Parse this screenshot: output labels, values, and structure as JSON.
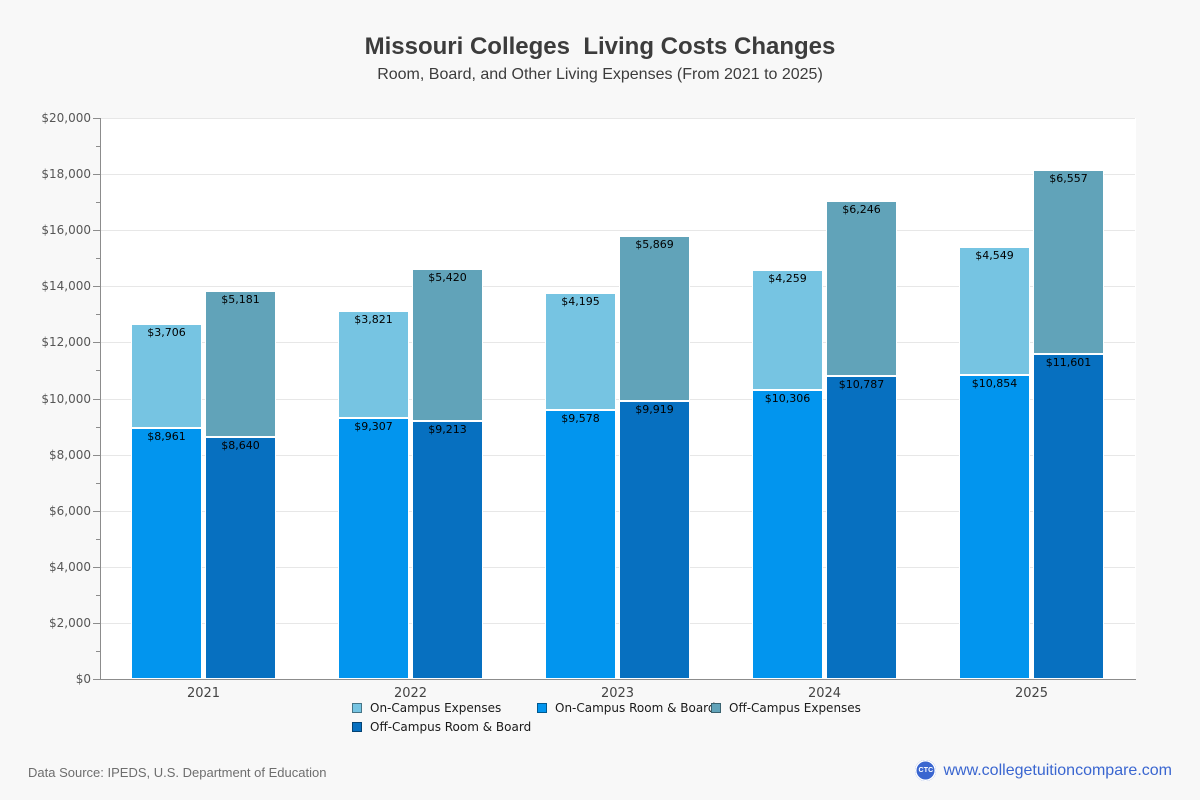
{
  "header": {
    "title": "Missouri Colleges  Living Costs Changes",
    "subtitle": "Room, Board, and Other Living Expenses (From 2021 to 2025)"
  },
  "chart_data": {
    "type": "bar",
    "stacked": true,
    "title": "Missouri Colleges  Living Costs Changes",
    "subtitle": "Room, Board, and Other Living Expenses (From 2021 to 2025)",
    "categories": [
      "2021",
      "2022",
      "2023",
      "2024",
      "2025"
    ],
    "bar_groups": [
      {
        "name": "on-campus",
        "series": [
          {
            "name": "On-Campus Room & Board",
            "color": "#0295ee",
            "values": [
              8961,
              9307,
              9578,
              10306,
              10854
            ]
          },
          {
            "name": "On-Campus Expenses",
            "color": "#76c4e2",
            "values": [
              3706,
              3821,
              4195,
              4259,
              4549
            ]
          }
        ]
      },
      {
        "name": "off-campus",
        "series": [
          {
            "name": "Off-Campus Room & Board",
            "color": "#0770c0",
            "values": [
              8640,
              9213,
              9919,
              10787,
              11601
            ]
          },
          {
            "name": "Off-Campus Expenses",
            "color": "#61a3b9",
            "values": [
              5181,
              5420,
              5869,
              6246,
              6557
            ]
          }
        ]
      }
    ],
    "ylim": [
      0,
      20000
    ],
    "y_tick_step": 2000,
    "y_minor_tick_step": 1000,
    "y_tick_labels": [
      "$0",
      "$2,000",
      "$4,000",
      "$6,000",
      "$8,000",
      "$10,000",
      "$12,000",
      "$14,000",
      "$16,000",
      "$18,000",
      "$20,000"
    ],
    "grid": true,
    "legend_position": "bottom",
    "value_label_prefix": "$"
  },
  "legend": {
    "items": [
      {
        "label": "On-Campus Expenses",
        "color": "#76c4e2"
      },
      {
        "label": "On-Campus Room & Board",
        "color": "#0295ee"
      },
      {
        "label": "Off-Campus Expenses",
        "color": "#61a3b9"
      },
      {
        "label": "Off-Campus Room & Board",
        "color": "#0770c0"
      }
    ]
  },
  "footer": {
    "source": "Data Source: IPEDS, U.S. Department of Education",
    "logo_text": "CTC",
    "site_label": "www.collegetuitioncompare.com"
  },
  "colors": {
    "accent_link": "#3a66d0",
    "axis": "#8c8c8c",
    "gridline": "#e7e7e7",
    "background": "#f8f8f8",
    "plot_background": "#ffffff"
  }
}
